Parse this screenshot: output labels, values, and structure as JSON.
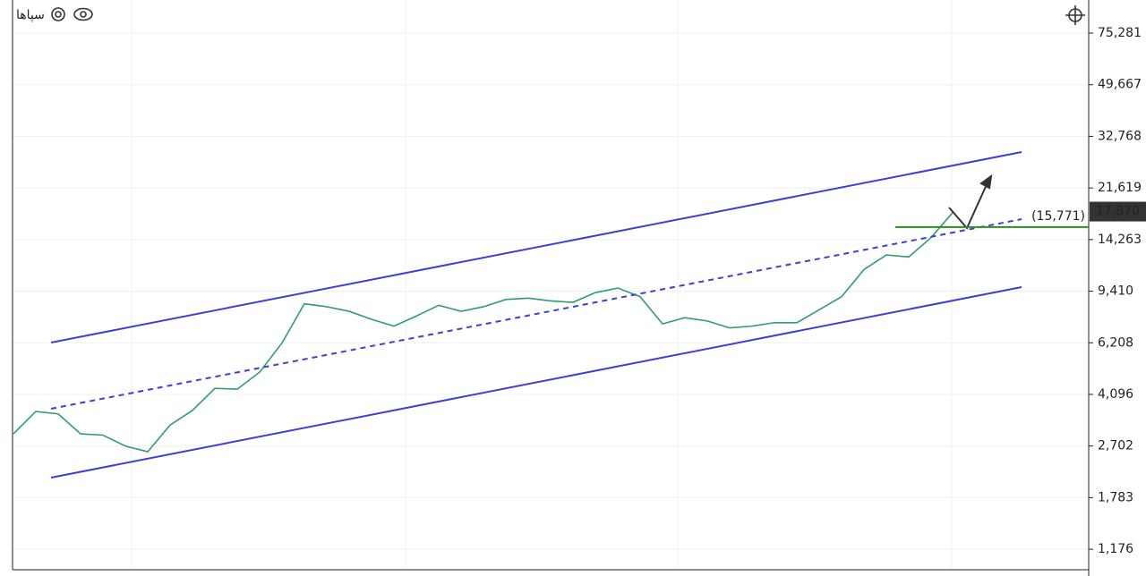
{
  "chart_data": {
    "type": "line",
    "title": "سپاها",
    "log_scale": true,
    "grid": true,
    "series": [
      {
        "name": "سپاها",
        "color": "#2e9e6a",
        "values": [
          2980,
          3568,
          3500,
          2980,
          2950,
          2700,
          2580,
          3200,
          3600,
          4300,
          4272,
          4900,
          6200,
          8500,
          8300,
          8000,
          7500,
          7100,
          7700,
          8400,
          8000,
          8300,
          8800,
          8900,
          8700,
          8600,
          9300,
          9650,
          9000,
          7231,
          7600,
          7400,
          7000,
          7100,
          7300,
          7300,
          8100,
          9000,
          11200,
          12600,
          12400,
          14500,
          17870
        ]
      }
    ],
    "ylim": [
      997,
      98300
    ],
    "yticks": [
      {
        "value": 1176,
        "label": "1,176"
      },
      {
        "value": 1783,
        "label": "1,783"
      },
      {
        "value": 2702,
        "label": "2,702"
      },
      {
        "value": 4096,
        "label": "4,096"
      },
      {
        "value": 6208,
        "label": "6,208"
      },
      {
        "value": 9410,
        "label": "9,410"
      },
      {
        "value": 14263,
        "label": "14,263"
      },
      {
        "value": 21619,
        "label": "21,619"
      },
      {
        "value": 32768,
        "label": "32,768"
      },
      {
        "value": 49667,
        "label": "49,667"
      },
      {
        "value": 75281,
        "label": "75,281"
      }
    ],
    "last_price": {
      "value": 17870,
      "label": "17,870"
    },
    "level": {
      "value": 15771,
      "label": "(15,771)",
      "color": "#2e8b22"
    }
  }
}
